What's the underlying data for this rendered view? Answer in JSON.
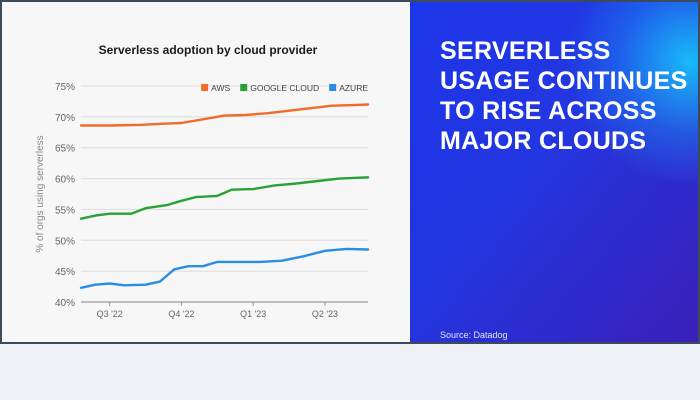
{
  "chart_data": {
    "type": "line",
    "title": "Serverless adoption by cloud provider",
    "ylabel": "% of orgs using serverless",
    "xlabel": "",
    "ylim": [
      40,
      75
    ],
    "y_ticks": [
      40,
      45,
      50,
      55,
      60,
      65,
      70,
      75
    ],
    "y_tick_labels": [
      "40%",
      "45%",
      "50%",
      "55%",
      "60%",
      "65%",
      "70%",
      "75%"
    ],
    "x_ticks": [
      {
        "t": 1.0,
        "label": "Q3 '22"
      },
      {
        "t": 2.0,
        "label": "Q4 '22"
      },
      {
        "t": 3.0,
        "label": "Q1 '23"
      },
      {
        "t": 4.0,
        "label": "Q2 '23"
      }
    ],
    "xlim": [
      0.6,
      4.6
    ],
    "legend_position": "top-right",
    "grid": "horizontal",
    "series": [
      {
        "name": "AWS",
        "color": "#f26b2a",
        "points": [
          [
            0.6,
            68.6
          ],
          [
            1.0,
            68.6
          ],
          [
            1.4,
            68.7
          ],
          [
            1.8,
            68.9
          ],
          [
            2.0,
            69.0
          ],
          [
            2.3,
            69.6
          ],
          [
            2.6,
            70.2
          ],
          [
            2.9,
            70.3
          ],
          [
            3.2,
            70.6
          ],
          [
            3.5,
            71.0
          ],
          [
            3.8,
            71.4
          ],
          [
            4.1,
            71.8
          ],
          [
            4.4,
            71.9
          ],
          [
            4.6,
            72.0
          ]
        ]
      },
      {
        "name": "GOOGLE CLOUD",
        "color": "#27a336",
        "points": [
          [
            0.6,
            53.5
          ],
          [
            0.8,
            54.0
          ],
          [
            1.0,
            54.3
          ],
          [
            1.3,
            54.3
          ],
          [
            1.5,
            55.2
          ],
          [
            1.8,
            55.7
          ],
          [
            2.0,
            56.4
          ],
          [
            2.2,
            57.0
          ],
          [
            2.5,
            57.2
          ],
          [
            2.7,
            58.2
          ],
          [
            3.0,
            58.3
          ],
          [
            3.3,
            58.9
          ],
          [
            3.6,
            59.2
          ],
          [
            3.9,
            59.6
          ],
          [
            4.2,
            60.0
          ],
          [
            4.6,
            60.2
          ]
        ]
      },
      {
        "name": "AZURE",
        "color": "#2a8de3",
        "points": [
          [
            0.6,
            42.3
          ],
          [
            0.8,
            42.8
          ],
          [
            1.0,
            43.0
          ],
          [
            1.2,
            42.7
          ],
          [
            1.5,
            42.8
          ],
          [
            1.7,
            43.3
          ],
          [
            1.9,
            45.3
          ],
          [
            2.1,
            45.8
          ],
          [
            2.3,
            45.8
          ],
          [
            2.5,
            46.5
          ],
          [
            2.8,
            46.5
          ],
          [
            3.1,
            46.5
          ],
          [
            3.4,
            46.7
          ],
          [
            3.7,
            47.4
          ],
          [
            4.0,
            48.3
          ],
          [
            4.3,
            48.6
          ],
          [
            4.6,
            48.5
          ]
        ]
      }
    ]
  },
  "promo": {
    "title": "SERVERLESS USAGE CONTINUES TO RISE ACROSS MAJOR CLOUDS",
    "source": "Source: Datadog"
  },
  "colors": {
    "promo_gradient_start": "#1c36ea",
    "promo_gradient_end": "#3a1fb8",
    "promo_glow": "#16d2ff"
  }
}
